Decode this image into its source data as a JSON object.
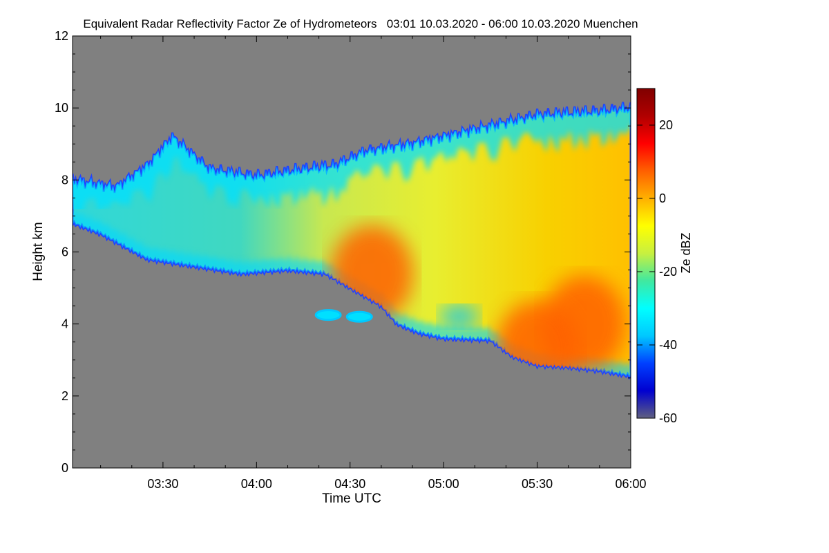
{
  "chart_data": {
    "type": "heatmap",
    "title": "Equivalent Radar Reflectivity Factor Ze of Hydrometeors   03:01 10.03.2020 - 06:00 10.03.2020 Muenchen",
    "xlabel": "Time UTC",
    "ylabel": "Height km",
    "colorbar_label": "Ze dBZ",
    "x_ticks": [
      "03:30",
      "04:00",
      "04:30",
      "05:00",
      "05:30",
      "06:00"
    ],
    "x_tick_minutes": [
      30,
      60,
      90,
      120,
      150,
      180
    ],
    "xlim_minutes": [
      1,
      180
    ],
    "y_ticks": [
      0,
      2,
      4,
      6,
      8,
      10,
      12
    ],
    "ylim": [
      0,
      12
    ],
    "colorbar_ticks": [
      20,
      0,
      -20,
      -40,
      -60
    ],
    "colorbar_range": [
      -60,
      30
    ],
    "background_color": "#808080",
    "colorscale": [
      "#606080",
      "#0000d0",
      "#0040ff",
      "#00c8ff",
      "#00ffff",
      "#40e8a0",
      "#c8f040",
      "#ffff00",
      "#ffb000",
      "#ff6000",
      "#ff0000",
      "#b00000",
      "#800000"
    ],
    "echo_layer": {
      "description_minutes_vs_km": true,
      "top_km": [
        [
          1,
          8.0
        ],
        [
          15,
          7.8
        ],
        [
          25,
          8.4
        ],
        [
          33,
          9.2
        ],
        [
          45,
          8.3
        ],
        [
          60,
          8.1
        ],
        [
          75,
          8.3
        ],
        [
          85,
          8.4
        ],
        [
          95,
          8.8
        ],
        [
          110,
          9.0
        ],
        [
          130,
          9.4
        ],
        [
          150,
          9.8
        ],
        [
          170,
          9.9
        ],
        [
          180,
          10.0
        ]
      ],
      "bottom_km": [
        [
          1,
          6.8
        ],
        [
          10,
          6.5
        ],
        [
          25,
          5.8
        ],
        [
          40,
          5.6
        ],
        [
          55,
          5.4
        ],
        [
          70,
          5.5
        ],
        [
          82,
          5.4
        ],
        [
          90,
          5.0
        ],
        [
          100,
          4.5
        ],
        [
          105,
          4.0
        ],
        [
          112,
          3.75
        ],
        [
          120,
          3.6
        ],
        [
          135,
          3.55
        ],
        [
          142,
          3.1
        ],
        [
          150,
          2.85
        ],
        [
          160,
          2.8
        ],
        [
          170,
          2.7
        ],
        [
          180,
          2.55
        ]
      ],
      "cores": [
        {
          "minute": 97,
          "km": 5.4,
          "dbz": 5
        },
        {
          "minute": 165,
          "km": 4.0,
          "dbz": 8
        },
        {
          "minute": 150,
          "km": 3.3,
          "dbz": 4
        },
        {
          "minute": 125,
          "km": 4.2,
          "dbz": -35
        }
      ]
    },
    "isolated_echoes": [
      {
        "minute": 83,
        "km": 4.25,
        "dbz": -40
      },
      {
        "minute": 93,
        "km": 4.2,
        "dbz": -40
      }
    ]
  }
}
